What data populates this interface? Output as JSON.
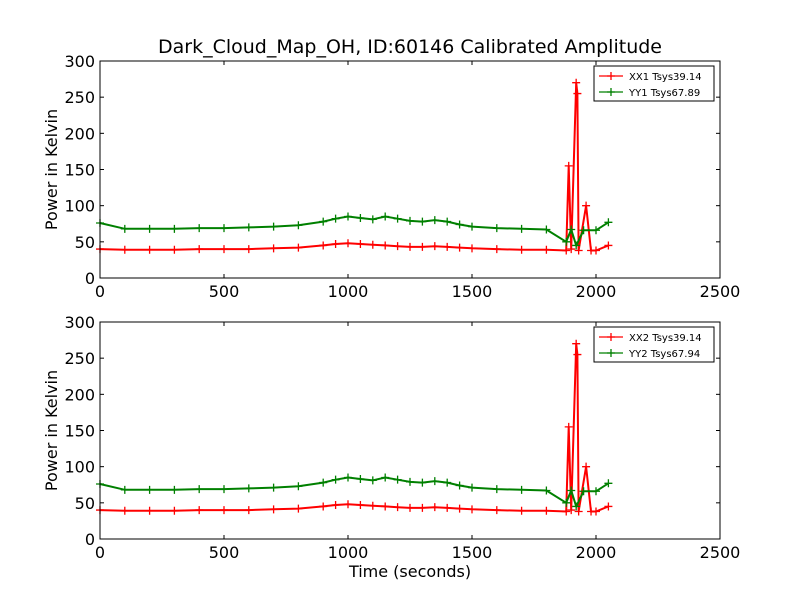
{
  "chart_data": [
    {
      "type": "scatter",
      "title": "Dark_Cloud_Map_OH, ID:60146 Calibrated Amplitude",
      "xlabel": "",
      "ylabel": "Power in Kelvin",
      "xlim": [
        0,
        2500
      ],
      "ylim": [
        0,
        300
      ],
      "xticks": [
        0,
        500,
        1000,
        1500,
        2000,
        2500
      ],
      "yticks": [
        0,
        50,
        100,
        150,
        200,
        250,
        300
      ],
      "legend_position": "upper right",
      "series": [
        {
          "name": "XX1 Tsys39.14",
          "color": "#ff0000",
          "marker": "+",
          "points": [
            [
              0,
              40
            ],
            [
              100,
              39
            ],
            [
              200,
              39
            ],
            [
              300,
              39
            ],
            [
              400,
              40
            ],
            [
              500,
              40
            ],
            [
              600,
              40
            ],
            [
              700,
              41
            ],
            [
              800,
              42
            ],
            [
              900,
              45
            ],
            [
              950,
              47
            ],
            [
              1000,
              48
            ],
            [
              1050,
              47
            ],
            [
              1100,
              46
            ],
            [
              1150,
              45
            ],
            [
              1200,
              44
            ],
            [
              1250,
              43
            ],
            [
              1300,
              43
            ],
            [
              1350,
              44
            ],
            [
              1400,
              43
            ],
            [
              1450,
              42
            ],
            [
              1500,
              41
            ],
            [
              1600,
              40
            ],
            [
              1700,
              39
            ],
            [
              1800,
              39
            ],
            [
              1880,
              38
            ],
            [
              1890,
              155
            ],
            [
              1900,
              40
            ],
            [
              1920,
              270
            ],
            [
              1925,
              255
            ],
            [
              1930,
              38
            ],
            [
              1960,
              100
            ],
            [
              1980,
              38
            ],
            [
              2000,
              38
            ],
            [
              2050,
              45
            ]
          ]
        },
        {
          "name": "YY1 Tsys67.89",
          "color": "#008000",
          "marker": "+",
          "points": [
            [
              0,
              76
            ],
            [
              100,
              68
            ],
            [
              200,
              68
            ],
            [
              300,
              68
            ],
            [
              400,
              69
            ],
            [
              500,
              69
            ],
            [
              600,
              70
            ],
            [
              700,
              71
            ],
            [
              800,
              73
            ],
            [
              900,
              78
            ],
            [
              950,
              82
            ],
            [
              1000,
              85
            ],
            [
              1050,
              83
            ],
            [
              1100,
              81
            ],
            [
              1150,
              85
            ],
            [
              1200,
              82
            ],
            [
              1250,
              79
            ],
            [
              1300,
              78
            ],
            [
              1350,
              80
            ],
            [
              1400,
              78
            ],
            [
              1450,
              74
            ],
            [
              1500,
              71
            ],
            [
              1600,
              69
            ],
            [
              1700,
              68
            ],
            [
              1800,
              67
            ],
            [
              1880,
              50
            ],
            [
              1900,
              67
            ],
            [
              1920,
              45
            ],
            [
              1950,
              66
            ],
            [
              2000,
              66
            ],
            [
              2050,
              77
            ]
          ]
        }
      ]
    },
    {
      "type": "scatter",
      "title": "",
      "xlabel": "Time (seconds)",
      "ylabel": "Power in Kelvin",
      "xlim": [
        0,
        2500
      ],
      "ylim": [
        0,
        300
      ],
      "xticks": [
        0,
        500,
        1000,
        1500,
        2000,
        2500
      ],
      "yticks": [
        0,
        50,
        100,
        150,
        200,
        250,
        300
      ],
      "legend_position": "upper right",
      "series": [
        {
          "name": "XX2 Tsys39.14",
          "color": "#ff0000",
          "marker": "+",
          "points": [
            [
              0,
              40
            ],
            [
              100,
              39
            ],
            [
              200,
              39
            ],
            [
              300,
              39
            ],
            [
              400,
              40
            ],
            [
              500,
              40
            ],
            [
              600,
              40
            ],
            [
              700,
              41
            ],
            [
              800,
              42
            ],
            [
              900,
              45
            ],
            [
              950,
              47
            ],
            [
              1000,
              48
            ],
            [
              1050,
              47
            ],
            [
              1100,
              46
            ],
            [
              1150,
              45
            ],
            [
              1200,
              44
            ],
            [
              1250,
              43
            ],
            [
              1300,
              43
            ],
            [
              1350,
              44
            ],
            [
              1400,
              43
            ],
            [
              1450,
              42
            ],
            [
              1500,
              41
            ],
            [
              1600,
              40
            ],
            [
              1700,
              39
            ],
            [
              1800,
              39
            ],
            [
              1880,
              38
            ],
            [
              1890,
              155
            ],
            [
              1900,
              40
            ],
            [
              1920,
              270
            ],
            [
              1925,
              255
            ],
            [
              1930,
              38
            ],
            [
              1960,
              100
            ],
            [
              1980,
              38
            ],
            [
              2000,
              38
            ],
            [
              2050,
              45
            ]
          ]
        },
        {
          "name": "YY2 Tsys67.94",
          "color": "#008000",
          "marker": "+",
          "points": [
            [
              0,
              76
            ],
            [
              100,
              68
            ],
            [
              200,
              68
            ],
            [
              300,
              68
            ],
            [
              400,
              69
            ],
            [
              500,
              69
            ],
            [
              600,
              70
            ],
            [
              700,
              71
            ],
            [
              800,
              73
            ],
            [
              900,
              78
            ],
            [
              950,
              82
            ],
            [
              1000,
              85
            ],
            [
              1050,
              83
            ],
            [
              1100,
              81
            ],
            [
              1150,
              85
            ],
            [
              1200,
              82
            ],
            [
              1250,
              79
            ],
            [
              1300,
              78
            ],
            [
              1350,
              80
            ],
            [
              1400,
              78
            ],
            [
              1450,
              74
            ],
            [
              1500,
              71
            ],
            [
              1600,
              69
            ],
            [
              1700,
              68
            ],
            [
              1800,
              67
            ],
            [
              1880,
              50
            ],
            [
              1900,
              67
            ],
            [
              1920,
              45
            ],
            [
              1950,
              66
            ],
            [
              2000,
              66
            ],
            [
              2050,
              77
            ]
          ]
        }
      ]
    }
  ]
}
